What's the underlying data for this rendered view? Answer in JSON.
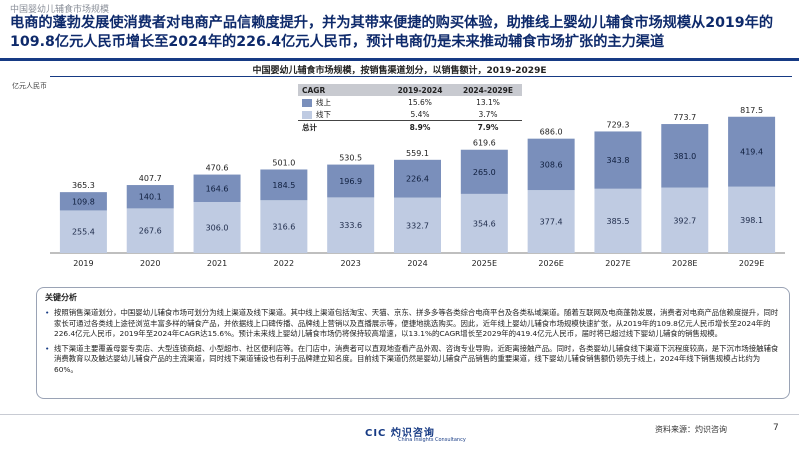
{
  "header": {
    "top_label": "中国婴幼儿辅食市场规模",
    "headline": "电商的蓬勃发展使消费者对电商产品信赖度提升，并为其带来便捷的购买体验，助推线上婴幼儿辅食市场规模从2019年的109.8亿元人民币增长至2024年的226.4亿元人民币，预计电商仍是未来推动辅食市场扩张的主力渠道"
  },
  "chart_data": {
    "type": "bar",
    "stacked": true,
    "title": "中国婴幼儿辅食市场规模，按销售渠道划分，以销售额计，2019-2029E",
    "unit": "亿元人民币",
    "categories": [
      "2019",
      "2020",
      "2021",
      "2022",
      "2023",
      "2024",
      "2025E",
      "2026E",
      "2027E",
      "2028E",
      "2029E"
    ],
    "series": [
      {
        "name": "线下",
        "values": [
          255.4,
          267.6,
          306.0,
          316.6,
          333.6,
          332.7,
          354.6,
          377.4,
          385.5,
          392.7,
          398.1
        ],
        "color": "#bfcbe2"
      },
      {
        "name": "线上",
        "values": [
          109.8,
          140.1,
          164.6,
          184.5,
          196.9,
          226.4,
          265.0,
          308.6,
          343.8,
          381.0,
          419.4
        ],
        "color": "#7a8fbb"
      }
    ],
    "totals": [
      365.3,
      407.7,
      470.6,
      501.0,
      530.5,
      559.1,
      619.6,
      686.0,
      729.3,
      773.7,
      817.5
    ],
    "ylim": [
      0,
      900
    ]
  },
  "cagr_table": {
    "headers": [
      "CAGR",
      "2019-2024",
      "2024-2029E"
    ],
    "rows": [
      {
        "label": "线上",
        "a": "15.6%",
        "b": "13.1%",
        "color": "#7a8fbb"
      },
      {
        "label": "线下",
        "a": "5.4%",
        "b": "3.7%",
        "color": "#bfcbe2"
      }
    ],
    "total": {
      "label": "总计",
      "a": "8.9%",
      "b": "7.9%"
    }
  },
  "analysis": {
    "title": "关键分析",
    "items": [
      "按照销售渠道划分，中国婴幼儿辅食市场可划分为线上渠道及线下渠道。其中线上渠道包括淘宝、天猫、京东、拼多多等各类综合电商平台及各类私域渠道。随着互联网及电商蓬勃发展，消费者对电商产品信赖度提升，同时家长可通过各类线上途径浏览丰富多样的辅食产品，并依据线上口碑传播、品牌线上营销以及直播展示等，便捷地挑选购买。因此，近年线上婴幼儿辅食市场规模快速扩张，从2019年的109.8亿元人民币增长至2024年的226.4亿元人民币，2019年至2024年CAGR达15.6%。预计未来线上婴幼儿辅食市场仍将保持较高增速，以13.1%的CAGR增长至2029年的419.4亿元人民币，届时将已超过线下婴幼儿辅食的销售规模。",
      "线下渠道主要覆盖母婴专卖店、大型连锁商超、小型超市、社区便利店等。在门店中，消费者可以直观地查看产品外观、咨询专业导购，近距离接触产品。同时，各类婴幼儿辅食线下渠道下沉程度较高，是下沉市场接触辅食消费教育以及触达婴幼儿辅食产品的主流渠道，同时线下渠道铺设也有利于品牌建立知名度。目前线下渠道仍然是婴幼儿辅食产品销售的重要渠道，线下婴幼儿辅食销售额仍领先于线上，2024年线下销售规模占比约为60%。"
    ]
  },
  "footer": {
    "logo": "CIC 灼识咨询",
    "logo_sub": "China Insights Consultancy",
    "source": "资料来源：灼识咨询",
    "page": "7"
  }
}
